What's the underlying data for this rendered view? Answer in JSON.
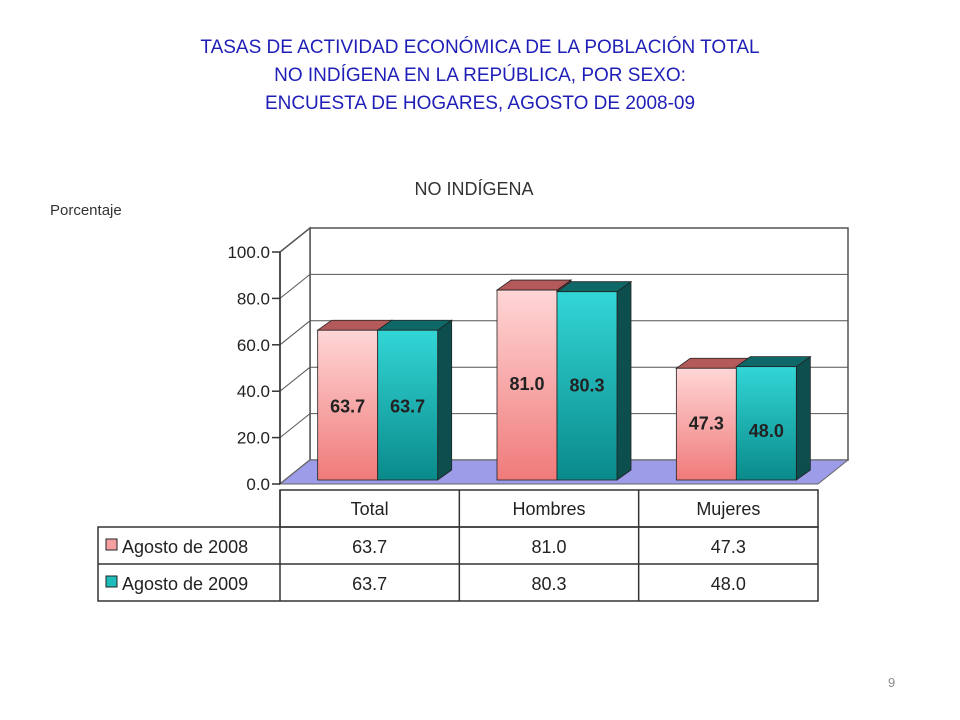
{
  "slide": {
    "title_lines": [
      "TASAS DE ACTIVIDAD ECONÓMICA DE LA POBLACIÓN TOTAL",
      "NO INDÍGENA EN LA REPÚBLICA, POR SEXO:",
      "ENCUESTA DE HOGARES, AGOSTO DE 2008-09"
    ],
    "page_number": "9"
  },
  "chart_data": {
    "type": "bar",
    "title": "NO INDÍGENA",
    "ylabel": "Porcentaje",
    "xlabel": "",
    "categories": [
      "Total",
      "Hombres",
      "Mujeres"
    ],
    "ylim": [
      0,
      100
    ],
    "yticks": [
      "0.0",
      "20.0",
      "40.0",
      "60.0",
      "80.0",
      "100.0"
    ],
    "grid": true,
    "legend": "data-table-below",
    "series": [
      {
        "name": "Agosto de 2008",
        "values": [
          63.7,
          81.0,
          47.3
        ],
        "labels": [
          "63.7",
          "81.0",
          "47.3"
        ],
        "color": "#f4a0a0"
      },
      {
        "name": "Agosto de 2009",
        "values": [
          63.7,
          80.3,
          48.0
        ],
        "labels": [
          "63.7",
          "80.3",
          "48.0"
        ],
        "color": "#1fbcbc"
      }
    ]
  }
}
